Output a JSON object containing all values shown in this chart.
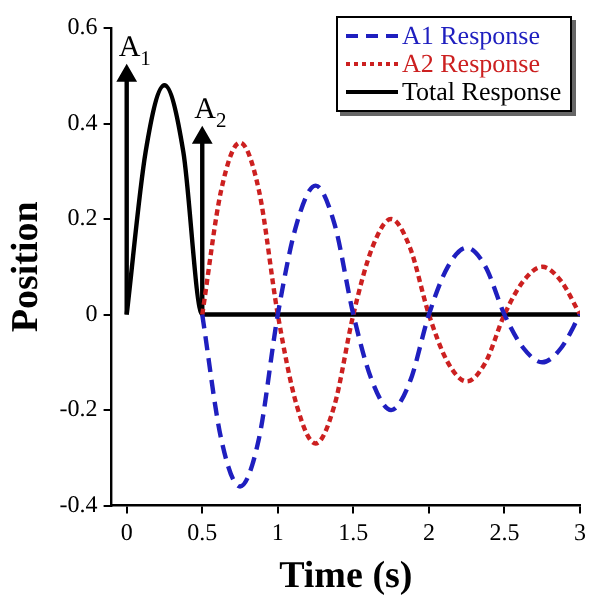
{
  "chart_data": {
    "type": "line",
    "xlabel": "Time (s)",
    "ylabel": "Position",
    "xlim": [
      -0.1,
      3
    ],
    "xticks": [
      0,
      0.5,
      1,
      1.5,
      2,
      2.5,
      3
    ],
    "ylim": [
      -0.4,
      0.6
    ],
    "yticks": [
      -0.4,
      -0.2,
      0,
      0.2,
      0.4,
      0.6
    ],
    "grid": false,
    "legend": "top right",
    "marker": "none",
    "series": [
      {
        "name": "A1 Response",
        "color": "#1f1fbf",
        "line_style": "dashed",
        "x": [
          0.5,
          0.625,
          0.75,
          0.875,
          1,
          1.125,
          1.25,
          1.375,
          1.5,
          1.625,
          1.75,
          1.875,
          2,
          2.125,
          2.25,
          2.375,
          2.5,
          2.625,
          2.75,
          2.875,
          3
        ],
        "values": [
          0,
          -0.26,
          -0.36,
          -0.26,
          0,
          0.19,
          0.27,
          0.19,
          0,
          -0.14,
          -0.2,
          -0.14,
          0,
          0.1,
          0.14,
          0.1,
          0,
          -0.07,
          -0.1,
          -0.07,
          0
        ]
      },
      {
        "name": "A2 Response",
        "color": "#cc2020",
        "line_style": "dotted",
        "x": [
          0.5,
          0.625,
          0.75,
          0.875,
          1,
          1.125,
          1.25,
          1.375,
          1.5,
          1.625,
          1.75,
          1.875,
          2,
          2.125,
          2.25,
          2.375,
          2.5,
          2.625,
          2.75,
          2.875,
          3
        ],
        "values": [
          0,
          0.26,
          0.36,
          0.26,
          0,
          -0.19,
          -0.27,
          -0.19,
          0,
          0.14,
          0.2,
          0.14,
          0,
          -0.1,
          -0.14,
          -0.1,
          0,
          0.07,
          0.1,
          0.07,
          0
        ]
      },
      {
        "name": "Total Response",
        "color": "#000000",
        "line_style": "solid",
        "x": [
          0,
          0.125,
          0.25,
          0.375,
          0.5,
          3
        ],
        "values": [
          0,
          0.34,
          0.48,
          0.34,
          0,
          0
        ]
      },
      {
        "color": "#000000",
        "line_style": "solid",
        "marker": "triangle",
        "x": [
          0,
          0
        ],
        "values": [
          0,
          0.5
        ]
      },
      {
        "color": "#000000",
        "line_style": "solid",
        "marker": "triangle",
        "x": [
          0.5,
          0.5
        ],
        "values": [
          0,
          0.37
        ]
      }
    ],
    "annotations": [
      {
        "text": "A$_{1}$",
        "x": 0,
        "y": 0.5
      },
      {
        "text": "A$_{2}$",
        "x": 0.5,
        "y": 0.37
      }
    ]
  }
}
